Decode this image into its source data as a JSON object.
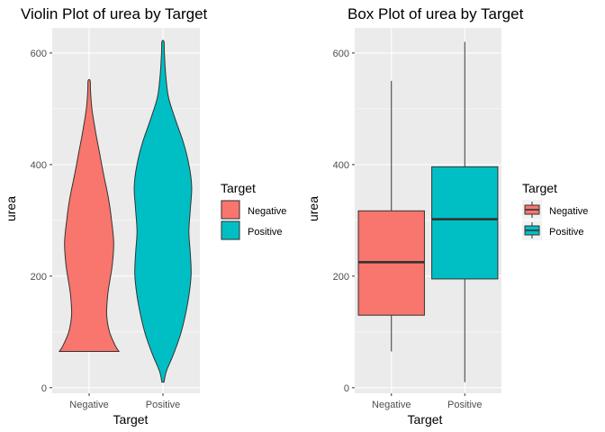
{
  "colors": {
    "negative": "#F8766D",
    "positive": "#00BFC4",
    "panel": "#EBEBEB",
    "grid": "#FFFFFF",
    "outline": "#333333"
  },
  "chart_data": [
    {
      "type": "violin",
      "title": "Violin Plot of urea by Target",
      "xlabel": "Target",
      "ylabel": "urea",
      "categories": [
        "Negative",
        "Positive"
      ],
      "ylim": [
        -10,
        645
      ],
      "yticks": [
        0,
        200,
        400,
        600
      ],
      "legend": {
        "title": "Target",
        "entries": [
          "Negative",
          "Positive"
        ],
        "position": "right"
      },
      "grid": true,
      "series": [
        {
          "name": "Negative",
          "profile": [
            [
              65,
              0.85
            ],
            [
              75,
              0.75
            ],
            [
              100,
              0.58
            ],
            [
              130,
              0.5
            ],
            [
              160,
              0.52
            ],
            [
              180,
              0.56
            ],
            [
              220,
              0.66
            ],
            [
              260,
              0.7
            ],
            [
              300,
              0.64
            ],
            [
              340,
              0.55
            ],
            [
              380,
              0.42
            ],
            [
              420,
              0.3
            ],
            [
              460,
              0.18
            ],
            [
              500,
              0.08
            ],
            [
              530,
              0.04
            ],
            [
              550,
              0.03
            ]
          ]
        },
        {
          "name": "Positive",
          "profile": [
            [
              10,
              0.03
            ],
            [
              30,
              0.1
            ],
            [
              60,
              0.3
            ],
            [
              100,
              0.52
            ],
            [
              150,
              0.7
            ],
            [
              200,
              0.8
            ],
            [
              240,
              0.78
            ],
            [
              280,
              0.74
            ],
            [
              320,
              0.78
            ],
            [
              360,
              0.82
            ],
            [
              400,
              0.74
            ],
            [
              440,
              0.58
            ],
            [
              480,
              0.36
            ],
            [
              520,
              0.16
            ],
            [
              560,
              0.08
            ],
            [
              600,
              0.04
            ],
            [
              620,
              0.03
            ]
          ]
        }
      ]
    },
    {
      "type": "box",
      "title": "Box Plot of urea by Target",
      "xlabel": "Target",
      "ylabel": "urea",
      "categories": [
        "Negative",
        "Positive"
      ],
      "ylim": [
        -10,
        645
      ],
      "yticks": [
        0,
        200,
        400,
        600
      ],
      "legend": {
        "title": "Target",
        "entries": [
          "Negative",
          "Positive"
        ],
        "position": "right"
      },
      "grid": true,
      "series": [
        {
          "name": "Negative",
          "min": 65,
          "q1": 130,
          "median": 225,
          "q3": 317,
          "max": 550
        },
        {
          "name": "Positive",
          "min": 10,
          "q1": 195,
          "median": 302,
          "q3": 396,
          "max": 620
        }
      ]
    }
  ]
}
